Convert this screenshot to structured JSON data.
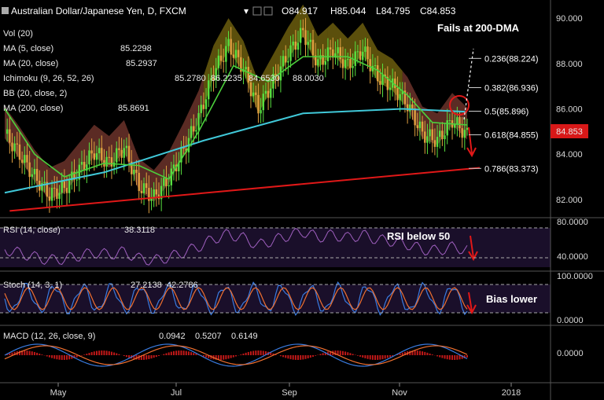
{
  "header": {
    "symbol": "Australian Dollar/Japanese Yen, D, FXCM",
    "open_label": "O",
    "open": "84.917",
    "high_label": "H",
    "high": "85.044",
    "low_label": "L",
    "low": "84.795",
    "close_label": "C",
    "close": "84.853"
  },
  "indicators": [
    {
      "label": "Vol (20)",
      "value": "",
      "color": "#ffffff"
    },
    {
      "label": "MA (5, close)",
      "value": "85.2298",
      "color": "#f0e000"
    },
    {
      "label": "MA (20, close)",
      "value": "85.2937",
      "color": "#4cd03c"
    },
    {
      "label": "Ichimoku (9, 26, 52, 26)",
      "value": "85.2780",
      "color": "#3a7be0"
    },
    {
      "label": "BB (20, close, 2)",
      "value": "",
      "color": "#ffffff"
    },
    {
      "label": "MA (200, close)",
      "value": "85.8691",
      "color": "#40c8d8"
    }
  ],
  "ichimoku_values": [
    "86.2235",
    "84.6530",
    "88.0030"
  ],
  "price_badge": "84.853",
  "annotations": {
    "fails": "Fails at 200-DMA",
    "rsi": "RSI below 50",
    "stoch": "Bias lower"
  },
  "rsi_panel": {
    "label": "RSI (14, close)",
    "value": "38.3118",
    "ticks": [
      "80.0000",
      "40.0000"
    ]
  },
  "stoch_panel": {
    "label": "Stoch (14, 3, 1)",
    "k": "27.2138",
    "d": "42.2786",
    "ticks": [
      "100.0000",
      "0.0000"
    ]
  },
  "macd_panel": {
    "label": "MACD (12, 26, close, 9)",
    "v1": "0.0942",
    "v2": "0.5207",
    "v3": "0.6149",
    "ticks": [
      "0.0000"
    ]
  },
  "colors": {
    "price_up": "#58e040",
    "price_down": "#e0a040",
    "trendline": "#e01818",
    "ma200": "#40c8d8",
    "ma20": "#4cd03c",
    "rsi": "#a060c0",
    "stoch_k": "#3a7be0",
    "stoch_d": "#f07030",
    "macd_hist": "#c01818"
  },
  "chart_data": {
    "type": "candlestick",
    "symbol": "AUD/JPY",
    "timeframe": "D",
    "x_ticks": [
      "May",
      "Jul",
      "Sep",
      "Nov",
      "2018"
    ],
    "y_ticks": [
      82.0,
      84.0,
      86.0,
      88.0,
      90.0
    ],
    "ylim": [
      81.2,
      90.8
    ],
    "last_close": 84.853,
    "fibonacci": [
      {
        "ratio": "0.236",
        "level": 88.224
      },
      {
        "ratio": "0.382",
        "level": 86.936
      },
      {
        "ratio": "0.5",
        "level": 85.896
      },
      {
        "ratio": "0.618",
        "level": 84.855
      },
      {
        "ratio": "0.786",
        "level": 83.373
      }
    ],
    "close_path": [
      {
        "x": 0,
        "y": 84.9
      },
      {
        "x": 6,
        "y": 84.0
      },
      {
        "x": 12,
        "y": 83.0
      },
      {
        "x": 18,
        "y": 82.2
      },
      {
        "x": 24,
        "y": 82.5
      },
      {
        "x": 30,
        "y": 83.3
      },
      {
        "x": 36,
        "y": 84.1
      },
      {
        "x": 42,
        "y": 83.6
      },
      {
        "x": 48,
        "y": 84.3
      },
      {
        "x": 54,
        "y": 82.6
      },
      {
        "x": 60,
        "y": 82.1
      },
      {
        "x": 66,
        "y": 82.9
      },
      {
        "x": 72,
        "y": 84.2
      },
      {
        "x": 78,
        "y": 85.6
      },
      {
        "x": 84,
        "y": 87.6
      },
      {
        "x": 90,
        "y": 88.8
      },
      {
        "x": 96,
        "y": 87.8
      },
      {
        "x": 102,
        "y": 86.0
      },
      {
        "x": 108,
        "y": 87.2
      },
      {
        "x": 114,
        "y": 88.4
      },
      {
        "x": 120,
        "y": 89.4
      },
      {
        "x": 126,
        "y": 88.0
      },
      {
        "x": 132,
        "y": 88.6
      },
      {
        "x": 138,
        "y": 87.9
      },
      {
        "x": 144,
        "y": 88.6
      },
      {
        "x": 150,
        "y": 87.4
      },
      {
        "x": 156,
        "y": 87.0
      },
      {
        "x": 162,
        "y": 86.2
      },
      {
        "x": 168,
        "y": 84.9
      },
      {
        "x": 174,
        "y": 84.6
      },
      {
        "x": 180,
        "y": 85.5
      },
      {
        "x": 186,
        "y": 84.85
      }
    ],
    "series": [
      {
        "name": "MA (200, close)",
        "points": [
          {
            "x": 0,
            "y": 82.3
          },
          {
            "x": 40,
            "y": 83.2
          },
          {
            "x": 80,
            "y": 84.6
          },
          {
            "x": 120,
            "y": 85.8
          },
          {
            "x": 160,
            "y": 86.0
          },
          {
            "x": 186,
            "y": 85.87
          }
        ]
      },
      {
        "name": "MA (20, close)",
        "points": [
          {
            "x": 0,
            "y": 86.0
          },
          {
            "x": 12,
            "y": 84.0
          },
          {
            "x": 24,
            "y": 83.0
          },
          {
            "x": 40,
            "y": 83.6
          },
          {
            "x": 54,
            "y": 83.5
          },
          {
            "x": 66,
            "y": 82.9
          },
          {
            "x": 78,
            "y": 85.0
          },
          {
            "x": 92,
            "y": 87.9
          },
          {
            "x": 106,
            "y": 87.2
          },
          {
            "x": 120,
            "y": 88.3
          },
          {
            "x": 138,
            "y": 88.3
          },
          {
            "x": 150,
            "y": 87.7
          },
          {
            "x": 162,
            "y": 86.6
          },
          {
            "x": 172,
            "y": 85.4
          },
          {
            "x": 186,
            "y": 85.29
          }
        ]
      },
      {
        "name": "Trendline",
        "points": [
          {
            "x": 2,
            "y": 81.5
          },
          {
            "x": 186,
            "y": 83.4
          }
        ]
      }
    ],
    "panels": [
      "RSI (14, close)",
      "Stoch (14, 3, 1)",
      "MACD (12, 26, close, 9)"
    ]
  }
}
